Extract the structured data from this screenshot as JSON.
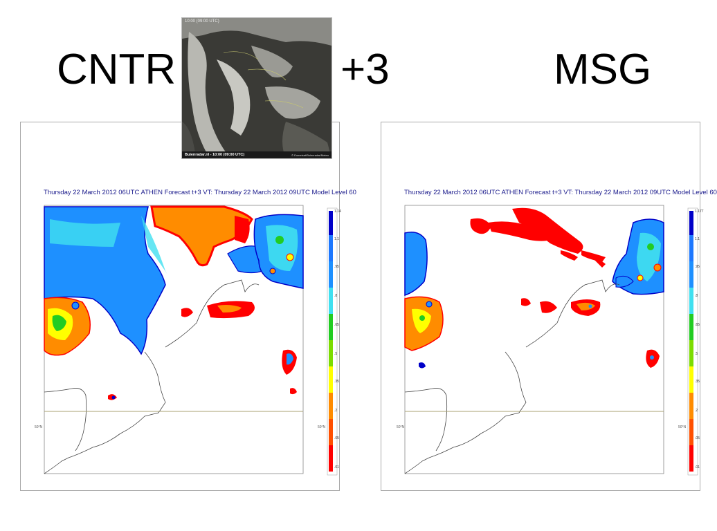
{
  "slide": {
    "left_title": "CNTR",
    "middle_title": "+3",
    "right_title": "MSG"
  },
  "satellite_inset": {
    "timestamp": "10:00 (09:00 UTC)",
    "caption": "Buienradar.nl - 10:00 (09:00 UTC)",
    "copyright": "© Eumetsat/Buienradar/Meteo"
  },
  "panels": [
    {
      "title": "Thursday 22 March 2012 06UTC ATHEN  Forecast t+3 VT: Thursday 22 March 2012 09UTC Model Level 60",
      "lat_label_left": "50°N",
      "lat_label_right": "50°N",
      "colorbar_ticks": [
        "1.14",
        "1.1",
        ".95",
        ".8",
        ".65",
        ".5",
        ".35",
        ".2",
        ".05",
        ".01"
      ]
    },
    {
      "title": "Thursday 22 March 2012 06UTC ATHEN  Forecast t+3 VT: Thursday 22 March 2012 09UTC Model Level 60",
      "lat_label_left": "50°N",
      "lat_label_right": "50°N",
      "colorbar_ticks": [
        "1.177",
        "1.1",
        ".95",
        ".8",
        ".65",
        ".5",
        ".35",
        ".2",
        ".05",
        ".01"
      ]
    }
  ],
  "colors": {
    "title_blue": "#1a1a8c",
    "deep_blue": "#0000c8",
    "mid_blue": "#1e90ff",
    "cyan": "#40e0f0",
    "green": "#22cc22",
    "yellow": "#ffff00",
    "orange": "#ff8c00",
    "red": "#ff0000",
    "coast": "#444444",
    "lat_line": "#a8a070"
  }
}
